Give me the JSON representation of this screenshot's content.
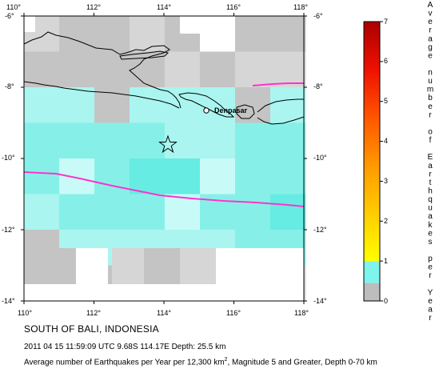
{
  "map": {
    "lon_ticks": [
      "110°",
      "112°",
      "114°",
      "116°",
      "118°"
    ],
    "lat_ticks": [
      "-6°",
      "-8°",
      "-10°",
      "-12°",
      "-14°"
    ],
    "city_label": "Denpasar",
    "epicenter_marker": "star-icon",
    "colors": {
      "plate_boundary": "#ff33cc",
      "coastline": "#000000",
      "gray_cell": "#c4c4c4",
      "light_gray_cell": "#d6d6d6",
      "cyan_cell": "#aaf5f0",
      "cyan_mid": "#86f0e8",
      "cyan_strong": "#66ece2",
      "cyan_pale": "#c8fbf8"
    }
  },
  "legend": {
    "ticks": [
      "0",
      "1",
      "2",
      "3",
      "4",
      "5",
      "6",
      "7"
    ],
    "title_letters": [
      "A",
      "v",
      "e",
      "r",
      "a",
      "g",
      "e",
      "",
      "n",
      "u",
      "m",
      "b",
      "e",
      "r",
      "",
      "o",
      "f",
      "",
      "E",
      "a",
      "r",
      "t",
      "h",
      "q",
      "u",
      "a",
      "k",
      "e",
      "s",
      "",
      "p",
      "e",
      "r",
      "",
      "Y",
      "e",
      "a",
      "r"
    ],
    "scale_colors": [
      "#bdbdbd",
      "#7ff4ec",
      "#ffff00",
      "#ffcc00",
      "#ff9900",
      "#ff5500",
      "#ee1100",
      "#aa0000"
    ]
  },
  "caption": {
    "title": "SOUTH OF BALI, INDONESIA",
    "event": "2011 04 15 11:59:09 UTC 9.68S 114.17E Depth: 25.5 km",
    "desc_before": "Average number of Earthquakes per Year per 12,300 km",
    "desc_sup": "2",
    "desc_after": ", Magnitude 5 and Greater, Depth 0-70 km"
  }
}
